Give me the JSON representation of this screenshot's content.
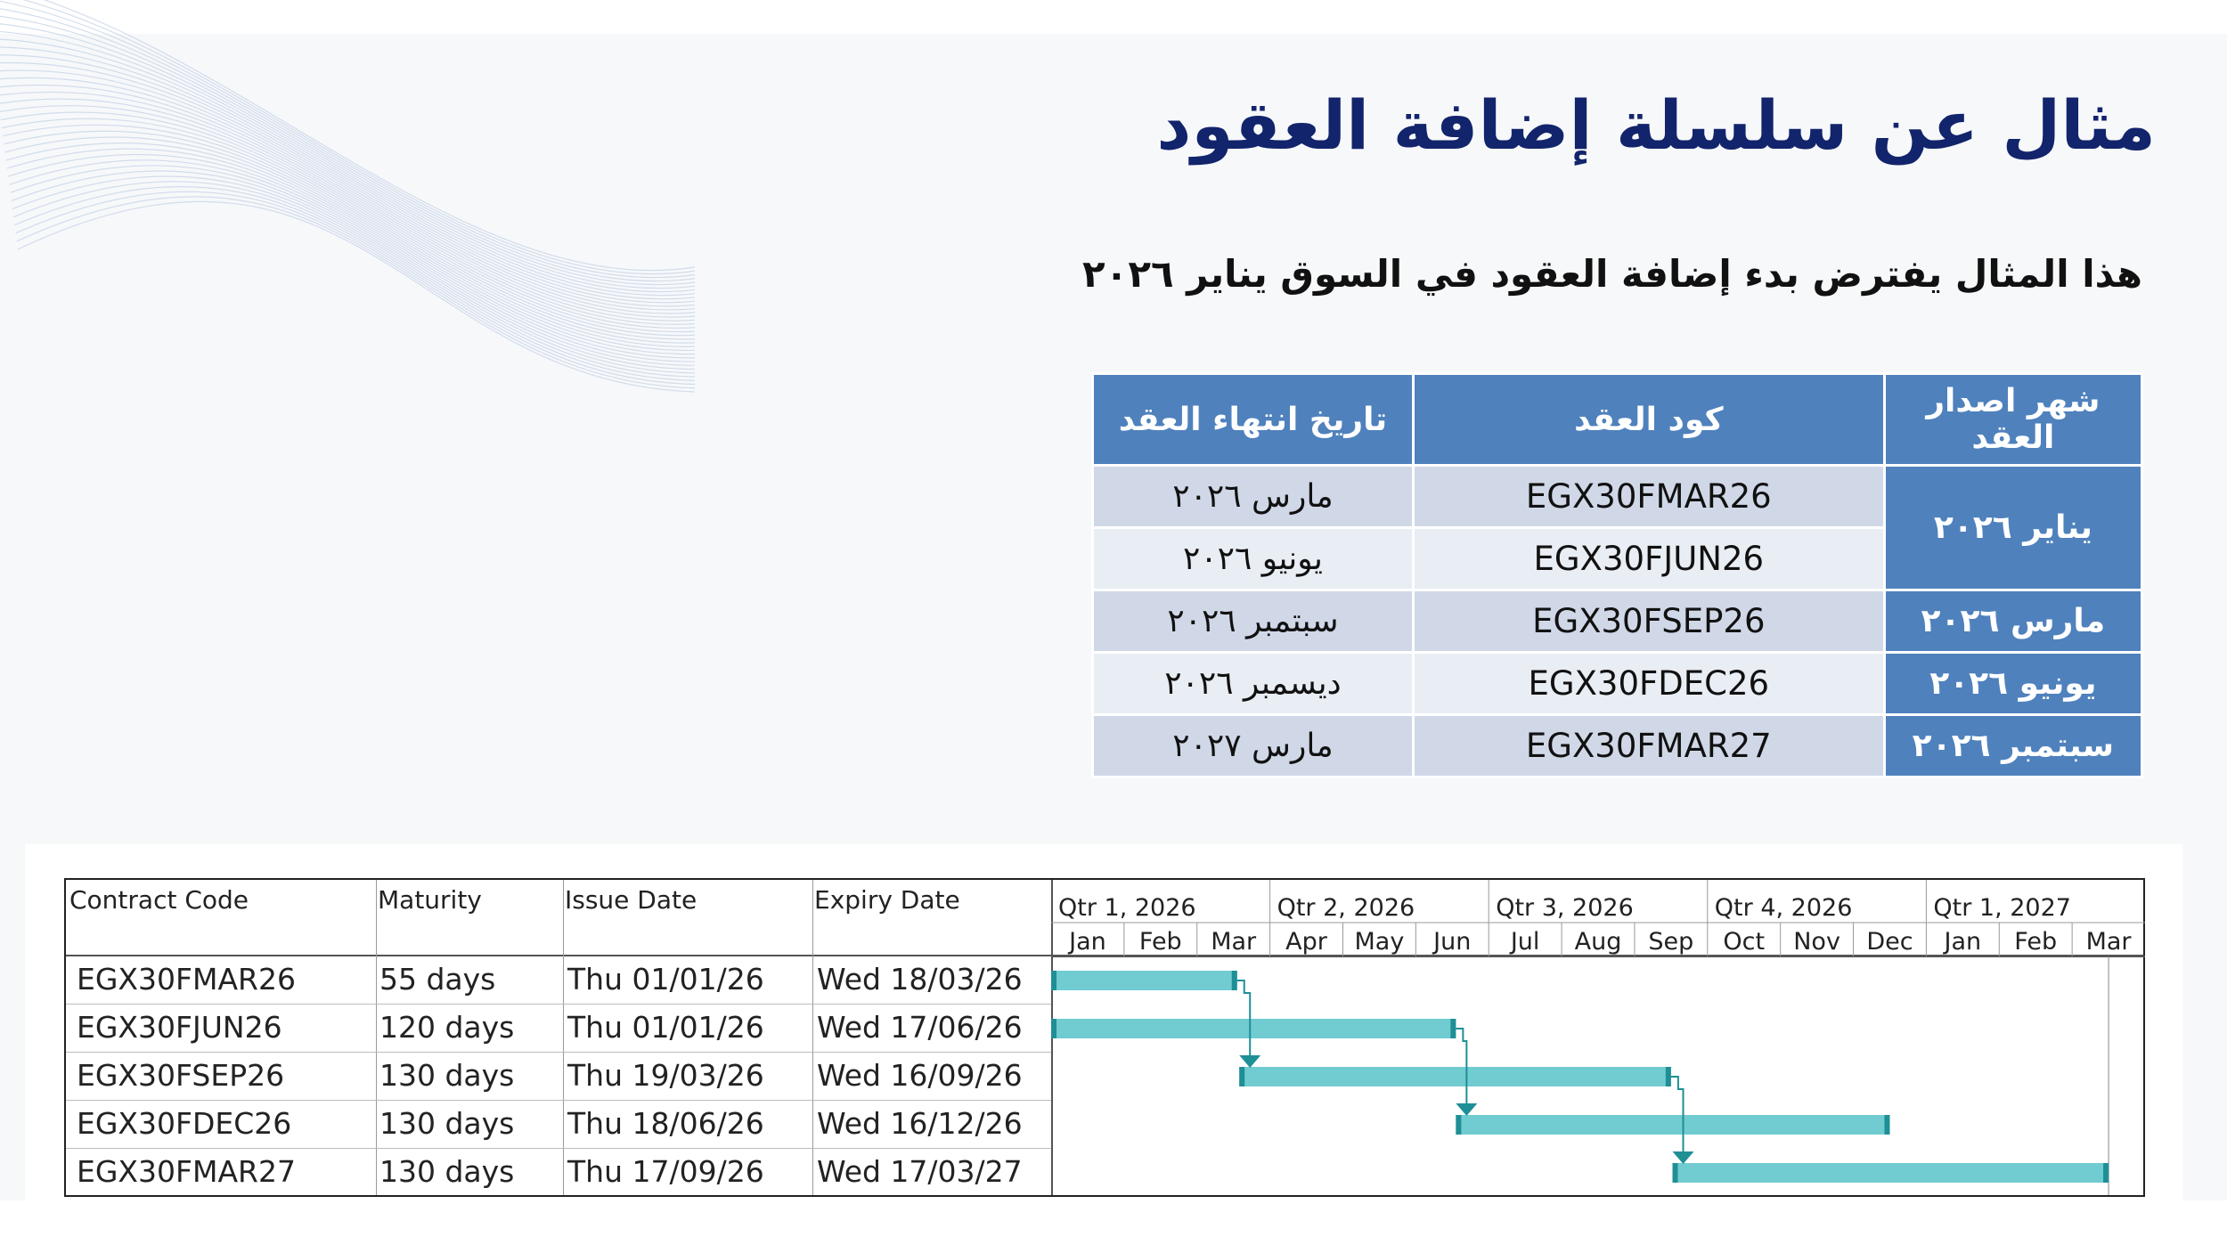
{
  "slide": {
    "title": "مثال عن سلسلة إضافة العقود",
    "subtitle": "هذا المثال يفترض بدء إضافة العقود في السوق يناير ٢٠٢٦"
  },
  "contracts_table": {
    "headers": {
      "issue_month": "شهر اصدار العقد",
      "code": "كود العقد",
      "expiry": "تاريخ انتهاء العقد"
    },
    "rows": [
      {
        "issue_month": "يناير ٢٠٢٦",
        "code": "EGX30FMAR26",
        "expiry": "مارس ٢٠٢٦"
      },
      {
        "issue_month": "",
        "code": "EGX30FJUN26",
        "expiry": "يونيو ٢٠٢٦"
      },
      {
        "issue_month": "مارس ٢٠٢٦",
        "code": "EGX30FSEP26",
        "expiry": "سبتمبر ٢٠٢٦"
      },
      {
        "issue_month": "يونيو ٢٠٢٦",
        "code": "EGX30FDEC26",
        "expiry": "ديسمبر ٢٠٢٦"
      },
      {
        "issue_month": "سبتمبر ٢٠٢٦",
        "code": "EGX30FMAR27",
        "expiry": "مارس ٢٠٢٧"
      }
    ],
    "header_color": "#4f81bd",
    "band_colors": [
      "#d0d8e8",
      "#e9edf4"
    ]
  },
  "gantt": {
    "columns": {
      "code": "Contract Code",
      "maturity": "Maturity",
      "issue": "Issue Date",
      "expiry": "Expiry Date"
    },
    "quarters": [
      "Qtr 1, 2026",
      "Qtr 2, 2026",
      "Qtr 3, 2026",
      "Qtr 4, 2026",
      "Qtr 1, 2027"
    ],
    "months": [
      "Jan",
      "Feb",
      "Mar",
      "Apr",
      "May",
      "Jun",
      "Jul",
      "Aug",
      "Sep",
      "Oct",
      "Nov",
      "Dec",
      "Jan",
      "Feb",
      "Mar"
    ],
    "rows": [
      {
        "code": "EGX30FMAR26",
        "maturity": "55 days",
        "issue": "Thu 01/01/26",
        "expiry": "Wed 18/03/26",
        "start_month": 0.0,
        "end_month": 2.55
      },
      {
        "code": "EGX30FJUN26",
        "maturity": "120 days",
        "issue": "Thu 01/01/26",
        "expiry": "Wed 17/06/26",
        "start_month": 0.0,
        "end_month": 5.55
      },
      {
        "code": "EGX30FSEP26",
        "maturity": "130 days",
        "issue": "Thu 19/03/26",
        "expiry": "Wed 16/09/26",
        "start_month": 2.58,
        "end_month": 8.5
      },
      {
        "code": "EGX30FDEC26",
        "maturity": "130 days",
        "issue": "Thu 18/06/26",
        "expiry": "Wed 16/12/26",
        "start_month": 5.55,
        "end_month": 11.5
      },
      {
        "code": "EGX30FMAR27",
        "maturity": "130 days",
        "issue": "Thu 17/09/26",
        "expiry": "Wed 17/03/27",
        "start_month": 8.52,
        "end_month": 14.5
      }
    ],
    "bar_color": "#70ccd0",
    "bar_end_color": "#1f8f96",
    "arrow_color": "#1f8f96"
  }
}
